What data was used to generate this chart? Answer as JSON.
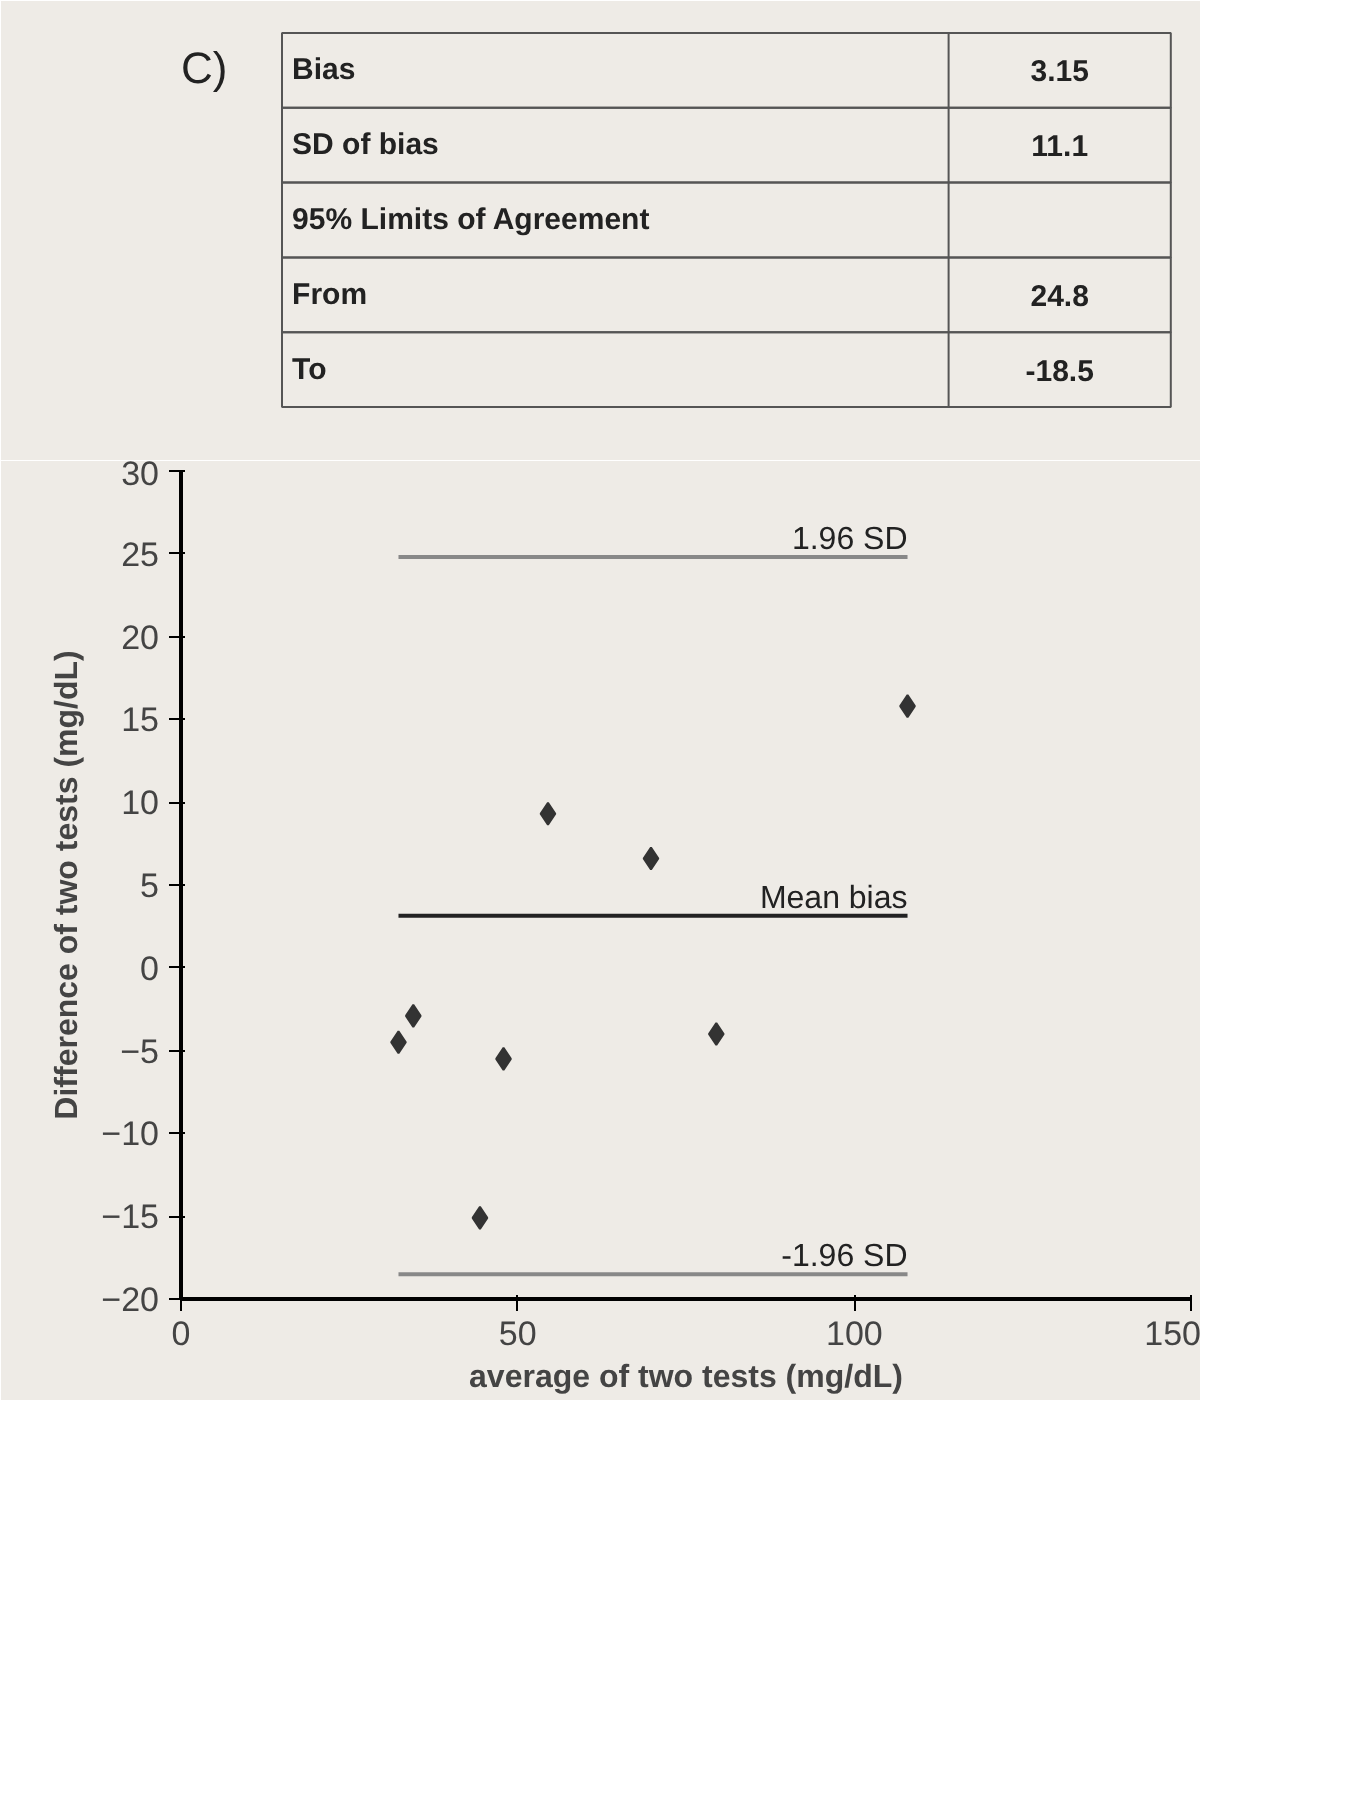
{
  "chart_data": {
    "type": "scatter",
    "xlabel": "average of two tests (mg/dL)",
    "ylabel": "Difference of two tests (mg/dL)",
    "x": [
      32.3,
      34.5,
      44.4,
      47.9,
      54.5,
      69.8,
      79.5,
      107.9
    ],
    "series": [
      {
        "color": "#333333",
        "values": [
          -4.5,
          -2.9,
          -15.1,
          -5.5,
          9.3,
          6.6,
          -4.0,
          15.8
        ]
      }
    ],
    "marker": "diamond",
    "grid": false,
    "xlim": [
      0,
      150
    ],
    "xticks": [
      0,
      50,
      100,
      150
    ],
    "ylim": [
      -20,
      30
    ],
    "yticks": [
      -20,
      -15,
      -10,
      -5,
      0,
      5,
      10,
      15,
      20,
      25,
      30
    ],
    "ref_lines": [
      {
        "axis": "y",
        "value": 24.8,
        "label": "1.96 SD",
        "color": "#888888"
      },
      {
        "axis": "y",
        "value": 3.15,
        "label": "Mean bias",
        "color": "#222222"
      },
      {
        "axis": "y",
        "value": -18.5,
        "label": "-1.96 SD",
        "color": "#888888"
      }
    ],
    "annotations": [
      "C)",
      "Bias",
      "3.15",
      "SD of bias",
      "11.1",
      "95% Limits of Agreement",
      "From",
      "24.8",
      "To",
      "-18.5"
    ]
  }
}
